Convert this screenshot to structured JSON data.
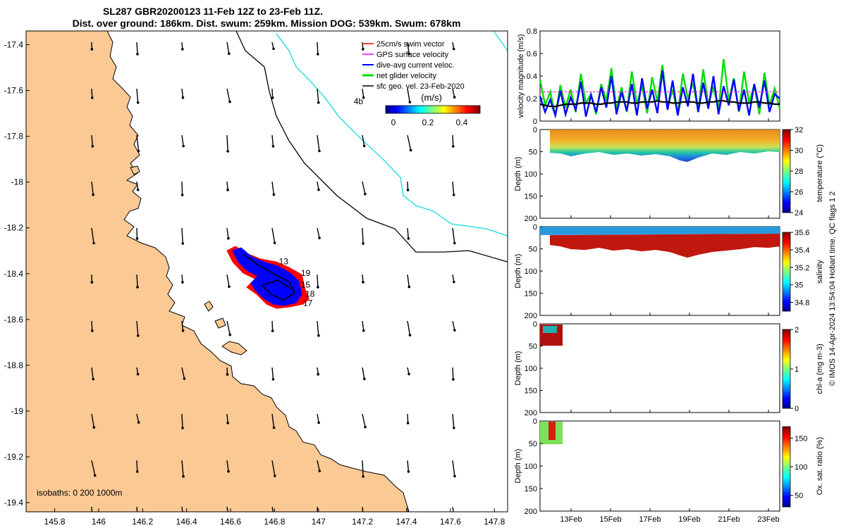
{
  "figure": {
    "title_line1": "SL287 GBR20200123 11-Feb 12Z to 23-Feb 11Z.",
    "title_line2": "Dist. over ground: 186km. Dist. swum: 259km. Mission DOG: 539km. Swum: 678km",
    "credit": "© IMOS 14-Apr-2024 13:54:04 Hobart time. QC flags 1  2",
    "isobaths_label": "isobaths: 0   200  1000m",
    "colors": {
      "land": "#fbc994",
      "sea": "#ffffff",
      "isobath_200": "#000000",
      "isobath_1000": "#33e0e0",
      "track_swim": "#ff0000",
      "track_current": "#0000ff"
    }
  },
  "chart_data": [
    {
      "type": "map",
      "x_ticks": [
        "145.8",
        "146",
        "146.2",
        "146.4",
        "146.6",
        "146.8",
        "147",
        "147.2",
        "147.4",
        "147.6",
        "147.8"
      ],
      "y_ticks": [
        "-17.4",
        "-17.6",
        "-17.8",
        "-18",
        "-18.2",
        "-18.4",
        "-18.6",
        "-18.8",
        "-19",
        "-19.2",
        "-19.4"
      ],
      "xlim": [
        145.67,
        147.86
      ],
      "ylim": [
        -19.44,
        -17.34
      ],
      "legend": [
        "25cm/s swim vector",
        "GPS surface velocity",
        "dive-avg current veloc.",
        "net glider velocity",
        "sfc geo. vel. 23-Feb-2020"
      ],
      "colorbar": {
        "label": "(m/s)",
        "ticks": [
          "0",
          "0.2",
          "0.4"
        ],
        "range": [
          0,
          0.5
        ]
      },
      "track_labels": [
        {
          "text": "13",
          "lon": 146.82,
          "lat": -18.36
        },
        {
          "text": "19",
          "lon": 146.92,
          "lat": -18.41
        },
        {
          "text": "15",
          "lon": 146.92,
          "lat": -18.46
        },
        {
          "text": "18",
          "lon": 146.94,
          "lat": -18.5
        },
        {
          "text": "17",
          "lon": 146.93,
          "lat": -18.54
        },
        {
          "text": "4b",
          "lon": 147.16,
          "lat": -17.66
        }
      ]
    },
    {
      "type": "line",
      "ylabel": "velocity magnitude (m/s)",
      "y_ticks": [
        "0",
        "0.2",
        "0.4",
        "0.6",
        "0.8"
      ],
      "ylim": [
        0,
        0.8
      ],
      "series": [
        {
          "color": "#00dd00",
          "values": [
            0.37,
            0.14,
            0.26,
            0.05,
            0.32,
            0.12,
            0.28,
            0.08,
            0.42,
            0.16,
            0.24,
            0.06,
            0.33,
            0.18,
            0.47,
            0.1,
            0.3,
            0.08,
            0.44,
            0.15,
            0.31,
            0.07,
            0.39,
            0.17,
            0.5,
            0.12,
            0.28,
            0.06,
            0.42,
            0.2,
            0.34,
            0.09,
            0.46,
            0.14,
            0.31,
            0.1,
            0.55,
            0.18,
            0.38,
            0.08,
            0.44,
            0.16,
            0.32,
            0.06,
            0.43,
            0.14,
            0.29,
            0.11
          ]
        },
        {
          "color": "#0000ff",
          "values": [
            0.22,
            0.08,
            0.19,
            0.05,
            0.27,
            0.06,
            0.21,
            0.1,
            0.35,
            0.04,
            0.23,
            0.08,
            0.3,
            0.12,
            0.4,
            0.06,
            0.26,
            0.09,
            0.33,
            0.05,
            0.38,
            0.11,
            0.28,
            0.07,
            0.45,
            0.1,
            0.36,
            0.05,
            0.3,
            0.13,
            0.42,
            0.08,
            0.34,
            0.11,
            0.4,
            0.06,
            0.31,
            0.14,
            0.37,
            0.09,
            0.28,
            0.05,
            0.33,
            0.12,
            0.36,
            0.08,
            0.24,
            0.2
          ]
        },
        {
          "color": "#000000",
          "values": [
            0.15,
            0.14,
            0.13,
            0.13,
            0.14,
            0.15,
            0.15,
            0.15,
            0.16,
            0.16,
            0.16,
            0.15,
            0.15,
            0.16,
            0.16,
            0.17,
            0.17,
            0.17,
            0.16,
            0.16,
            0.17,
            0.17,
            0.17,
            0.18,
            0.17,
            0.17,
            0.16,
            0.16,
            0.17,
            0.17,
            0.17,
            0.16,
            0.16,
            0.17,
            0.17,
            0.18,
            0.18,
            0.17,
            0.17,
            0.16,
            0.16,
            0.16,
            0.17,
            0.17,
            0.16,
            0.16,
            0.15,
            0.15
          ]
        },
        {
          "color": "#ff00ff",
          "values": [
            0.26,
            0.26,
            0.26,
            0.26,
            0.26,
            0.26,
            0.26,
            0.26,
            0.26,
            0.26,
            0.26,
            0.26,
            0.26,
            0.26,
            0.26,
            0.26,
            0.26,
            0.26,
            0.26,
            0.26,
            0.26,
            0.26,
            0.26,
            0.26,
            0.26,
            0.26,
            0.26,
            0.26,
            0.26,
            0.26,
            0.26,
            0.26,
            0.26,
            0.26,
            0.26,
            0.26,
            0.26,
            0.26,
            0.26,
            0.26,
            0.26,
            0.26,
            0.26,
            0.26,
            0.26,
            0.26,
            0.26,
            0.26
          ]
        }
      ]
    },
    {
      "type": "heatmap",
      "ylabel": "Depth (m)",
      "y_ticks": [
        "0",
        "50",
        "100",
        "150",
        "200"
      ],
      "colorbar_label": "temperature (°C)",
      "colorbar_ticks": [
        "32",
        "30",
        "28",
        "26",
        "24"
      ],
      "crange": [
        24,
        32
      ]
    },
    {
      "type": "heatmap",
      "ylabel": "Depth (m)",
      "y_ticks": [
        "0",
        "50",
        "100",
        "150",
        "200"
      ],
      "colorbar_label": "salinity",
      "colorbar_ticks": [
        "35.6",
        "35.4",
        "35.2",
        "35",
        "34.8"
      ],
      "crange": [
        34.7,
        35.6
      ]
    },
    {
      "type": "heatmap",
      "ylabel": "Depth (m)",
      "y_ticks": [
        "0",
        "50",
        "100",
        "150",
        "200"
      ],
      "colorbar_label": "chl-a (mg m-3)",
      "colorbar_ticks": [
        "2",
        "1",
        "0"
      ],
      "crange": [
        0,
        2
      ]
    },
    {
      "type": "heatmap",
      "ylabel": "Depth (m)",
      "y_ticks": [
        "0",
        "50",
        "100",
        "150",
        "200"
      ],
      "colorbar_label": "Ox. sat. ratio (%)",
      "colorbar_ticks": [
        "150",
        "100",
        "50"
      ],
      "crange": [
        30,
        170
      ],
      "x_ticks": [
        "13Feb",
        "15Feb",
        "17Feb",
        "19Feb",
        "21Feb",
        "23Feb"
      ]
    }
  ]
}
